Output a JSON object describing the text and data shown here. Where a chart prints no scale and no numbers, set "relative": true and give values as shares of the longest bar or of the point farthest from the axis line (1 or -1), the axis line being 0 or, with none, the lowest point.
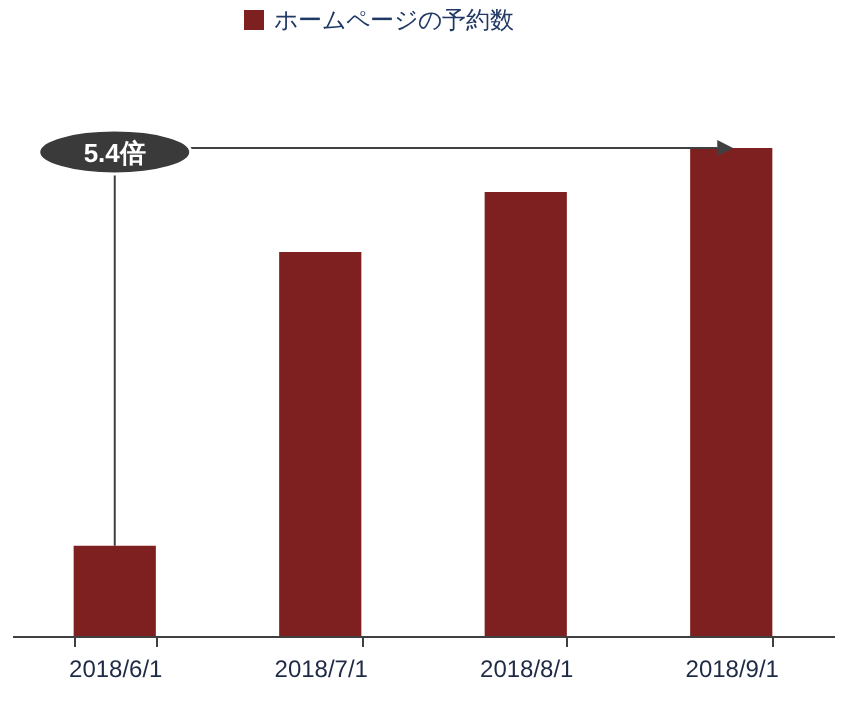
{
  "chart_data": {
    "type": "bar",
    "relative": true,
    "categories": [
      "2018/6/1",
      "2018/7/1",
      "2018/8/1",
      "2018/9/1"
    ],
    "series": [
      {
        "name": "ホームページの予約数",
        "color": "#7f2020",
        "values": [
          0.185,
          0.787,
          0.91,
          1
        ]
      }
    ],
    "legend": "top",
    "annotations": [
      "5.4倍"
    ]
  }
}
